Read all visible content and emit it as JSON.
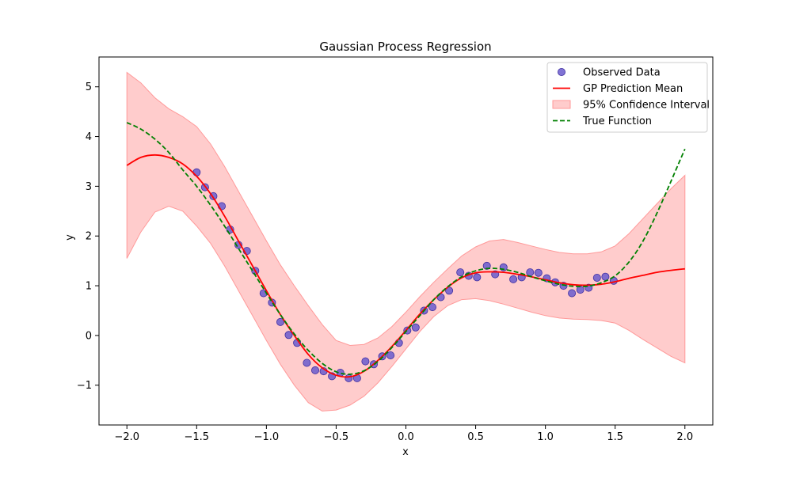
{
  "chart_data": {
    "type": "line",
    "title": "Gaussian Process Regression",
    "xlabel": "x",
    "ylabel": "y",
    "xlim": [
      -2.2,
      2.2
    ],
    "ylim": [
      -1.8,
      5.6
    ],
    "xticks": [
      -2.0,
      -1.5,
      -1.0,
      -0.5,
      0.0,
      0.5,
      1.0,
      1.5,
      2.0
    ],
    "xtick_labels": [
      "−2.0",
      "−1.5",
      "−1.0",
      "−0.5",
      "0.0",
      "0.5",
      "1.0",
      "1.5",
      "2.0"
    ],
    "yticks": [
      -1,
      0,
      1,
      2,
      3,
      4,
      5
    ],
    "ytick_labels": [
      "−1",
      "0",
      "1",
      "2",
      "3",
      "4",
      "5"
    ],
    "grid": false,
    "legend_position": "top-right",
    "colors": {
      "observed": "#6a5acd",
      "observed_edge": "#3f2fa0",
      "mean": "#ff0000",
      "band": "#ff9999",
      "true_function": "#008000",
      "axes": "#000000"
    },
    "series": [
      {
        "name": "Observed Data",
        "kind": "scatter",
        "x": [
          -1.5,
          -1.44,
          -1.38,
          -1.32,
          -1.26,
          -1.2,
          -1.14,
          -1.08,
          -1.02,
          -0.96,
          -0.9,
          -0.84,
          -0.78,
          -0.71,
          -0.65,
          -0.59,
          -0.53,
          -0.47,
          -0.41,
          -0.35,
          -0.29,
          -0.23,
          -0.17,
          -0.11,
          -0.05,
          0.01,
          0.07,
          0.13,
          0.19,
          0.25,
          0.31,
          0.39,
          0.45,
          0.51,
          0.58,
          0.64,
          0.7,
          0.77,
          0.83,
          0.89,
          0.95,
          1.01,
          1.07,
          1.13,
          1.19,
          1.25,
          1.31,
          1.37,
          1.43,
          1.49
        ],
        "y": [
          3.28,
          2.98,
          2.8,
          2.6,
          2.13,
          1.82,
          1.7,
          1.3,
          0.85,
          0.66,
          0.27,
          0.01,
          -0.15,
          -0.55,
          -0.7,
          -0.72,
          -0.82,
          -0.75,
          -0.86,
          -0.86,
          -0.52,
          -0.58,
          -0.42,
          -0.4,
          -0.15,
          0.1,
          0.16,
          0.5,
          0.57,
          0.77,
          0.9,
          1.27,
          1.2,
          1.17,
          1.4,
          1.23,
          1.37,
          1.13,
          1.17,
          1.27,
          1.26,
          1.15,
          1.07,
          1.0,
          0.85,
          0.92,
          0.96,
          1.16,
          1.18,
          1.1
        ]
      },
      {
        "name": "GP Prediction Mean",
        "kind": "line",
        "x": [
          -2.0,
          -1.9,
          -1.8,
          -1.7,
          -1.6,
          -1.5,
          -1.4,
          -1.3,
          -1.2,
          -1.1,
          -1.0,
          -0.9,
          -0.8,
          -0.7,
          -0.6,
          -0.5,
          -0.4,
          -0.3,
          -0.2,
          -0.1,
          0.0,
          0.1,
          0.2,
          0.3,
          0.4,
          0.5,
          0.6,
          0.7,
          0.8,
          0.9,
          1.0,
          1.1,
          1.2,
          1.3,
          1.4,
          1.5,
          1.6,
          1.7,
          1.8,
          1.9,
          2.0
        ],
        "y": [
          3.42,
          3.58,
          3.63,
          3.58,
          3.45,
          3.2,
          2.85,
          2.4,
          1.9,
          1.4,
          0.9,
          0.42,
          0.0,
          -0.38,
          -0.65,
          -0.8,
          -0.83,
          -0.72,
          -0.5,
          -0.22,
          0.1,
          0.43,
          0.72,
          0.97,
          1.16,
          1.26,
          1.28,
          1.27,
          1.23,
          1.18,
          1.12,
          1.06,
          1.02,
          1.01,
          1.03,
          1.08,
          1.15,
          1.21,
          1.27,
          1.31,
          1.34
        ]
      },
      {
        "name": "95% Confidence Interval",
        "kind": "band",
        "x": [
          -2.0,
          -1.9,
          -1.8,
          -1.7,
          -1.6,
          -1.5,
          -1.4,
          -1.3,
          -1.2,
          -1.1,
          -1.0,
          -0.9,
          -0.8,
          -0.7,
          -0.6,
          -0.5,
          -0.4,
          -0.3,
          -0.2,
          -0.1,
          0.0,
          0.1,
          0.2,
          0.3,
          0.4,
          0.5,
          0.6,
          0.7,
          0.8,
          0.9,
          1.0,
          1.1,
          1.2,
          1.3,
          1.4,
          1.5,
          1.6,
          1.7,
          1.8,
          1.9,
          2.0
        ],
        "lower": [
          1.55,
          2.08,
          2.48,
          2.6,
          2.5,
          2.2,
          1.85,
          1.4,
          0.9,
          0.4,
          -0.1,
          -0.58,
          -1.0,
          -1.35,
          -1.52,
          -1.5,
          -1.4,
          -1.22,
          -0.95,
          -0.62,
          -0.27,
          0.08,
          0.38,
          0.6,
          0.72,
          0.74,
          0.7,
          0.63,
          0.55,
          0.47,
          0.4,
          0.35,
          0.33,
          0.32,
          0.3,
          0.25,
          0.1,
          -0.08,
          -0.25,
          -0.42,
          -0.55
        ],
        "upper": [
          5.29,
          5.08,
          4.78,
          4.56,
          4.4,
          4.2,
          3.85,
          3.4,
          2.9,
          2.4,
          1.9,
          1.42,
          1.0,
          0.6,
          0.22,
          -0.1,
          -0.2,
          -0.18,
          -0.05,
          0.18,
          0.47,
          0.78,
          1.07,
          1.34,
          1.6,
          1.78,
          1.9,
          1.93,
          1.87,
          1.8,
          1.73,
          1.67,
          1.64,
          1.64,
          1.68,
          1.8,
          2.05,
          2.35,
          2.65,
          2.95,
          3.22
        ]
      },
      {
        "name": "True Function",
        "kind": "line",
        "style": "dashed",
        "x": [
          -2.0,
          -1.9,
          -1.8,
          -1.7,
          -1.6,
          -1.5,
          -1.4,
          -1.3,
          -1.2,
          -1.1,
          -1.0,
          -0.9,
          -0.8,
          -0.7,
          -0.6,
          -0.5,
          -0.4,
          -0.3,
          -0.2,
          -0.1,
          0.0,
          0.1,
          0.2,
          0.3,
          0.4,
          0.5,
          0.6,
          0.7,
          0.8,
          0.9,
          1.0,
          1.1,
          1.2,
          1.3,
          1.4,
          1.5,
          1.6,
          1.7,
          1.8,
          1.9,
          2.0
        ],
        "y": [
          4.28,
          4.15,
          3.95,
          3.68,
          3.33,
          3.0,
          2.62,
          2.2,
          1.75,
          1.3,
          0.85,
          0.42,
          0.03,
          -0.3,
          -0.56,
          -0.73,
          -0.78,
          -0.71,
          -0.52,
          -0.24,
          0.08,
          0.4,
          0.72,
          0.98,
          1.18,
          1.3,
          1.35,
          1.33,
          1.27,
          1.18,
          1.1,
          1.03,
          0.99,
          0.99,
          1.06,
          1.2,
          1.48,
          1.9,
          2.46,
          3.1,
          3.75
        ]
      }
    ]
  }
}
